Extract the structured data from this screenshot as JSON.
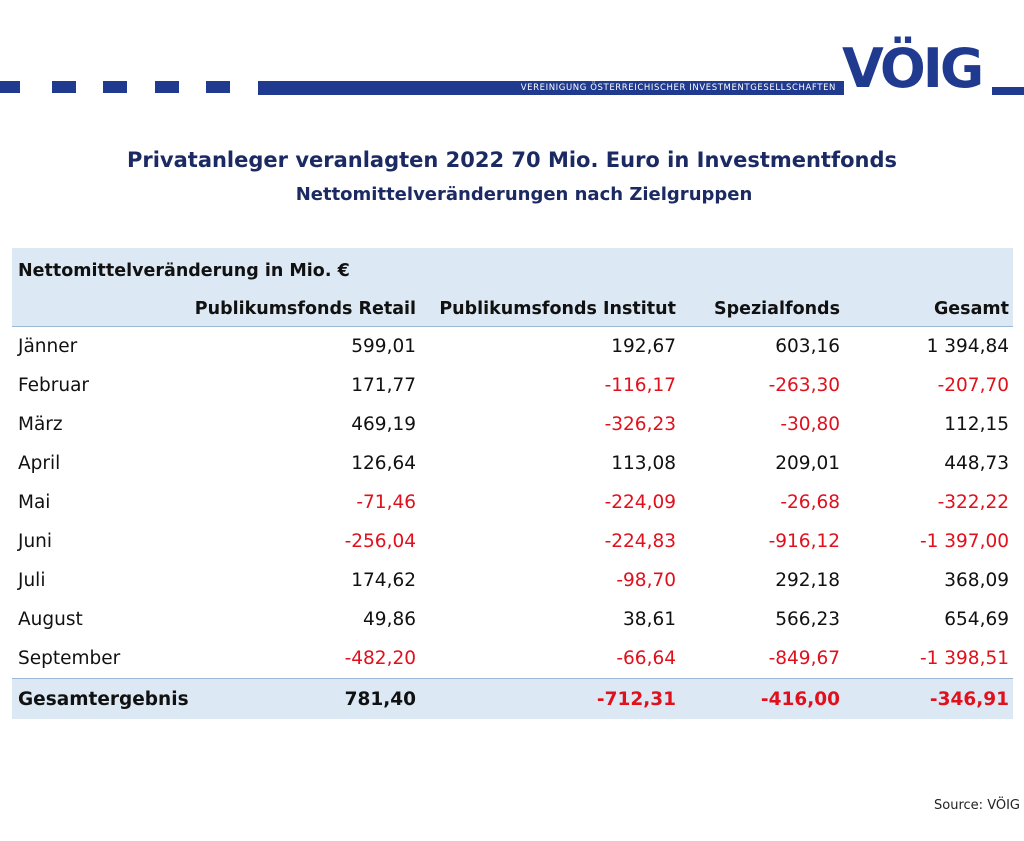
{
  "header": {
    "band_text": "VEREINIGUNG ÖSTERREICHISCHER INVESTMENTGESELLSCHAFTEN",
    "logo_text": "VÖIG"
  },
  "title": "Privatanleger veranlagten 2022  70 Mio. Euro in Investmentfonds",
  "subtitle": "Nettomittelveränderungen nach Zielgruppen",
  "table": {
    "caption": "Nettomittelveränderung in Mio. €",
    "columns": [
      "",
      "Publikumsfonds Retail",
      "Publikumsfonds Institut",
      "Spezialfonds",
      "Gesamt"
    ],
    "rows": [
      [
        "Jänner",
        "599,01",
        "192,67",
        "603,16",
        "1 394,84"
      ],
      [
        "Februar",
        "171,77",
        "-116,17",
        "-263,30",
        "-207,70"
      ],
      [
        "März",
        "469,19",
        "-326,23",
        "-30,80",
        "112,15"
      ],
      [
        "April",
        "126,64",
        "113,08",
        "209,01",
        "448,73"
      ],
      [
        "Mai",
        "-71,46",
        "-224,09",
        "-26,68",
        "-322,22"
      ],
      [
        "Juni",
        "-256,04",
        "-224,83",
        "-916,12",
        "-1 397,00"
      ],
      [
        "Juli",
        "174,62",
        "-98,70",
        "292,18",
        "368,09"
      ],
      [
        "August",
        "49,86",
        "38,61",
        "566,23",
        "654,69"
      ],
      [
        "September",
        "-482,20",
        "-66,64",
        "-849,67",
        "-1 398,51"
      ]
    ],
    "total": [
      "Gesamtergebnis",
      "781,40",
      "-712,31",
      "-416,00",
      "-346,91"
    ]
  },
  "source": "Source: VÖIG",
  "colors": {
    "brand": "#1f3a8f",
    "title": "#1c2a63",
    "negative": "#e0101c",
    "header_bg": "#dce9f5"
  }
}
